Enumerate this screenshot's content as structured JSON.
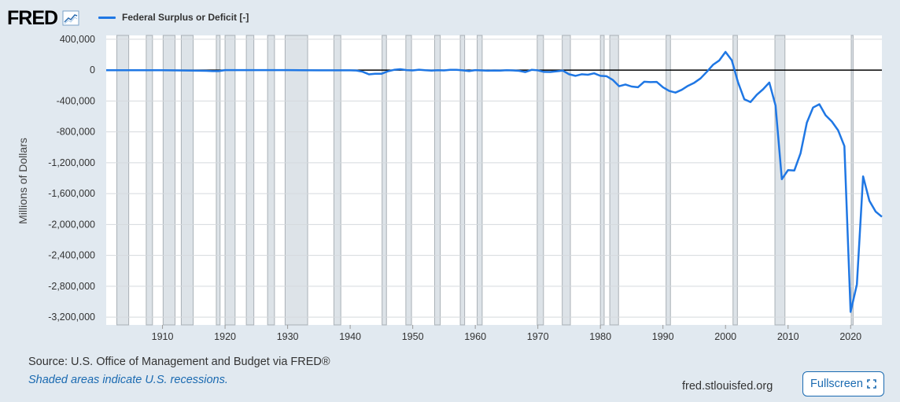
{
  "header": {
    "logo_text": "FRED",
    "series_label": "Federal Surplus or Deficit [-]"
  },
  "colors": {
    "series": "#1f77e4",
    "recession": "#dde3e8",
    "recession_edge": "#a9b0b6",
    "zero_line": "#000000",
    "grid": "#e6e6e6",
    "background": "#e1e9f0"
  },
  "footer": {
    "source": "Source: U.S. Office of Management and Budget via FRED®",
    "recession_note": "Shaded areas indicate U.S. recessions.",
    "site": "fred.stlouisfed.org",
    "fullscreen_label": "Fullscreen"
  },
  "chart_data": {
    "type": "line",
    "title": "Federal Surplus or Deficit [-]",
    "xlabel": "",
    "ylabel": "Millions of Dollars",
    "xlim": [
      1901,
      2025
    ],
    "ylim": [
      -3300000,
      450000
    ],
    "x_ticks": [
      1910,
      1920,
      1930,
      1940,
      1950,
      1960,
      1970,
      1980,
      1990,
      2000,
      2010,
      2020
    ],
    "y_ticks": [
      400000,
      0,
      -400000,
      -800000,
      -1200000,
      -1600000,
      -2000000,
      -2400000,
      -2800000,
      -3200000
    ],
    "y_tick_labels": [
      "400,000",
      "0",
      "-400,000",
      "-800,000",
      "-1,200,000",
      "-1,600,000",
      "-2,000,000",
      "-2,400,000",
      "-2,800,000",
      "-3,200,000"
    ],
    "recessions": [
      [
        1902.7,
        1904.6
      ],
      [
        1907.4,
        1908.4
      ],
      [
        1910.1,
        1912.0
      ],
      [
        1913.0,
        1914.9
      ],
      [
        1918.6,
        1919.2
      ],
      [
        1920.0,
        1921.6
      ],
      [
        1923.4,
        1924.6
      ],
      [
        1926.8,
        1927.9
      ],
      [
        1929.6,
        1933.2
      ],
      [
        1937.4,
        1938.5
      ],
      [
        1945.1,
        1945.8
      ],
      [
        1948.9,
        1949.8
      ],
      [
        1953.5,
        1954.4
      ],
      [
        1957.6,
        1958.3
      ],
      [
        1960.3,
        1961.1
      ],
      [
        1969.9,
        1970.9
      ],
      [
        1973.9,
        1975.2
      ],
      [
        1980.0,
        1980.6
      ],
      [
        1981.5,
        1982.9
      ],
      [
        1990.5,
        1991.2
      ],
      [
        2001.2,
        2001.9
      ],
      [
        2007.9,
        2009.5
      ],
      [
        2020.1,
        2020.4
      ]
    ],
    "series": [
      {
        "name": "Federal Surplus or Deficit [-]",
        "x": [
          1901,
          1910,
          1917,
          1918,
          1919,
          1920,
          1925,
          1930,
          1935,
          1940,
          1941,
          1942,
          1943,
          1944,
          1945,
          1946,
          1947,
          1948,
          1949,
          1950,
          1951,
          1952,
          1953,
          1954,
          1955,
          1956,
          1957,
          1958,
          1959,
          1960,
          1961,
          1962,
          1963,
          1964,
          1965,
          1966,
          1967,
          1968,
          1969,
          1970,
          1971,
          1972,
          1973,
          1974,
          1975,
          1976,
          1977,
          1978,
          1979,
          1980,
          1981,
          1982,
          1983,
          1984,
          1985,
          1986,
          1987,
          1988,
          1989,
          1990,
          1991,
          1992,
          1993,
          1994,
          1995,
          1996,
          1997,
          1998,
          1999,
          2000,
          2001,
          2002,
          2003,
          2004,
          2005,
          2006,
          2007,
          2008,
          2009,
          2010,
          2011,
          2012,
          2013,
          2014,
          2015,
          2016,
          2017,
          2018,
          2019,
          2020,
          2021,
          2022,
          2023,
          2024,
          2025
        ],
        "values": [
          0,
          0,
          -9000,
          -13000,
          -13000,
          291,
          717,
          738,
          -2800,
          -2920,
          -4941,
          -20503,
          -54554,
          -47557,
          -47553,
          -15936,
          4018,
          11796,
          580,
          -3119,
          6102,
          -1519,
          -6493,
          -1154,
          -2993,
          3947,
          3412,
          -2769,
          -12849,
          301,
          -3335,
          -7146,
          -4756,
          -5915,
          -1411,
          -3698,
          -8643,
          -25161,
          3242,
          -2842,
          -23033,
          -23373,
          -14908,
          -6135,
          -53242,
          -73732,
          -53659,
          -59185,
          -40726,
          -73830,
          -78968,
          -127977,
          -207802,
          -185367,
          -212308,
          -221227,
          -149730,
          -155178,
          -152639,
          -221036,
          -269238,
          -290321,
          -255051,
          -203186,
          -163952,
          -107431,
          -21884,
          69270,
          125610,
          236241,
          128236,
          -157758,
          -377585,
          -412727,
          -318346,
          -248181,
          -160701,
          -458553,
          -1412688,
          -1294373,
          -1299599,
          -1076573,
          -679775,
          -484602,
          -441960,
          -584651,
          -665446,
          -779137,
          -983600,
          -3131917,
          -2775321,
          -1375945,
          -1693000,
          -1832000,
          -1900000
        ]
      }
    ]
  }
}
